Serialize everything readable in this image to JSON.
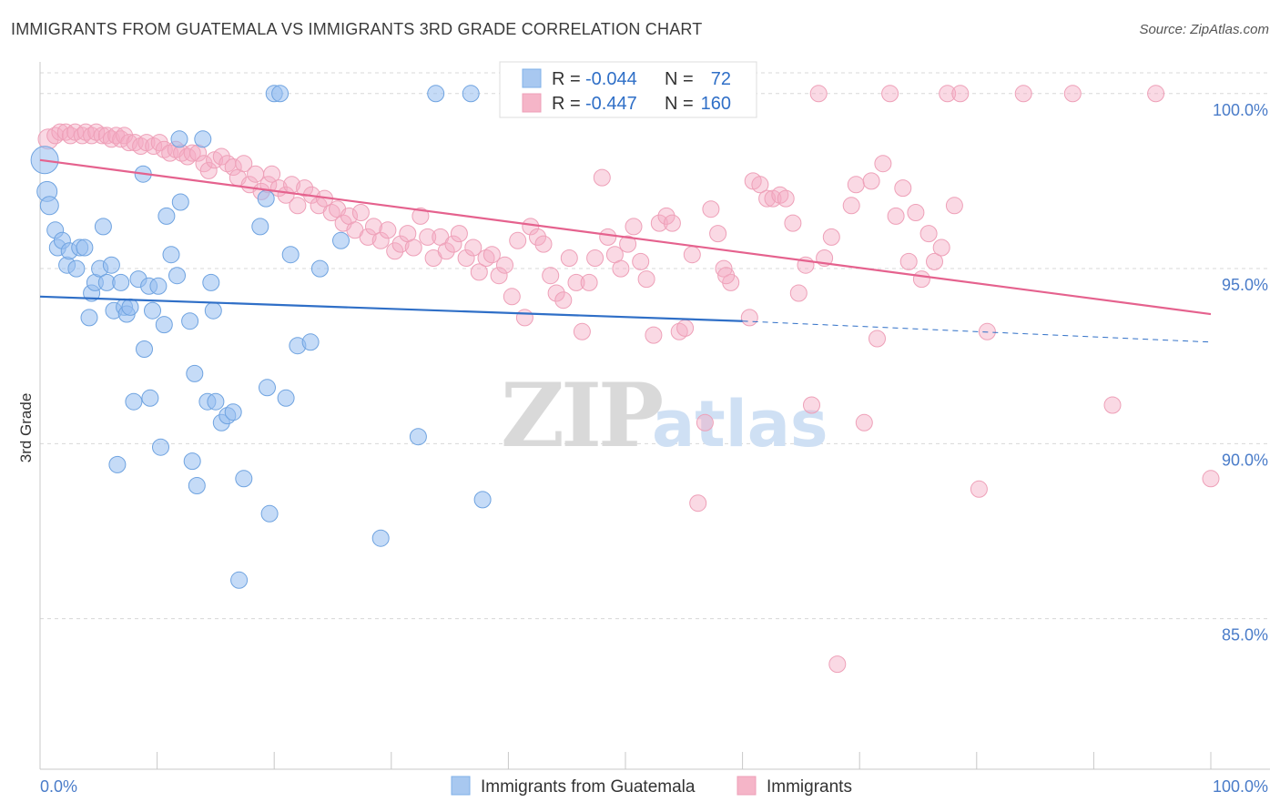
{
  "header": {
    "title": "IMMIGRANTS FROM GUATEMALA VS IMMIGRANTS 3RD GRADE CORRELATION CHART",
    "source": "Source: ZipAtlas.com"
  },
  "watermark": {
    "zip": "ZIP",
    "atlas": "atlas"
  },
  "legend": {
    "rows": [
      {
        "r_label": "R =",
        "r_value": "-0.044",
        "n_label": "N =",
        "n_value": "72",
        "color": "#a8c8f0"
      },
      {
        "r_label": "R =",
        "r_value": "-0.447",
        "n_label": "N =",
        "n_value": "160",
        "color": "#f5b5c8"
      }
    ]
  },
  "chart_data": {
    "type": "scatter",
    "title": "IMMIGRANTS FROM GUATEMALA VS IMMIGRANTS 3RD GRADE CORRELATION CHART",
    "xlabel": "",
    "ylabel": "3rd Grade",
    "x_tick_labels": [
      "0.0%",
      "100.0%"
    ],
    "y_tick_labels": [
      "100.0%",
      "95.0%",
      "90.0%",
      "85.0%"
    ],
    "y_ticks": [
      100,
      95,
      90,
      85
    ],
    "xlim": [
      0,
      100
    ],
    "ylim": [
      80.7,
      100.8
    ],
    "grid": true,
    "legend_position": "top-center",
    "colors": {
      "blue": "#6fa3e0",
      "blue_line": "#2f6fc7",
      "pink": "#f0a0ba",
      "pink_line": "#e5628e",
      "tick": "#4a7cc9"
    },
    "series": [
      {
        "name": "Immigrants from Guatemala",
        "color": "#a8c8f0",
        "trend": {
          "x": [
            0,
            60
          ],
          "y": [
            94.2,
            93.5
          ],
          "dashed_extension": {
            "x": [
              60,
              100
            ],
            "y": [
              93.5,
              92.9
            ]
          }
        },
        "points": [
          [
            0.4,
            98.1,
            14
          ],
          [
            0.6,
            97.2,
            10
          ],
          [
            0.8,
            96.8,
            9
          ],
          [
            1.3,
            96.1,
            8
          ],
          [
            1.5,
            95.6,
            8
          ],
          [
            1.9,
            95.8,
            8
          ],
          [
            2.3,
            95.1,
            8
          ],
          [
            2.5,
            95.5,
            8
          ],
          [
            3.1,
            95.0,
            8
          ],
          [
            3.4,
            95.6,
            8
          ],
          [
            3.8,
            95.6,
            8
          ],
          [
            4.2,
            93.6,
            8
          ],
          [
            4.4,
            94.3,
            8
          ],
          [
            4.7,
            94.6,
            8
          ],
          [
            5.1,
            95.0,
            8
          ],
          [
            5.4,
            96.2,
            8
          ],
          [
            5.7,
            94.6,
            8
          ],
          [
            6.1,
            95.1,
            8
          ],
          [
            6.3,
            93.8,
            8
          ],
          [
            6.6,
            89.4,
            8
          ],
          [
            6.9,
            94.6,
            8
          ],
          [
            7.2,
            93.9,
            8
          ],
          [
            7.4,
            93.7,
            8
          ],
          [
            7.7,
            93.9,
            8
          ],
          [
            8.0,
            91.2,
            8
          ],
          [
            8.4,
            94.7,
            8
          ],
          [
            8.8,
            97.7,
            8
          ],
          [
            8.9,
            92.7,
            8
          ],
          [
            9.3,
            94.5,
            8
          ],
          [
            9.4,
            91.3,
            8
          ],
          [
            9.6,
            93.8,
            8
          ],
          [
            10.1,
            94.5,
            8
          ],
          [
            10.3,
            89.9,
            8
          ],
          [
            10.6,
            93.4,
            8
          ],
          [
            10.8,
            96.5,
            8
          ],
          [
            11.2,
            95.4,
            8
          ],
          [
            11.7,
            94.8,
            8
          ],
          [
            12.0,
            96.9,
            8
          ],
          [
            12.8,
            93.5,
            8
          ],
          [
            13.0,
            89.5,
            8
          ],
          [
            13.2,
            92.0,
            8
          ],
          [
            13.4,
            88.8,
            8
          ],
          [
            13.9,
            98.7,
            8
          ],
          [
            14.3,
            91.2,
            8
          ],
          [
            14.8,
            93.8,
            8
          ],
          [
            14.6,
            94.6,
            8
          ],
          [
            15.0,
            91.2,
            8
          ],
          [
            15.5,
            90.6,
            8
          ],
          [
            16.0,
            90.8,
            8
          ],
          [
            16.5,
            90.9,
            8
          ],
          [
            17.0,
            86.1,
            8
          ],
          [
            17.4,
            89.0,
            8
          ],
          [
            18.8,
            96.2,
            8
          ],
          [
            19.3,
            97.0,
            8
          ],
          [
            19.4,
            91.6,
            8
          ],
          [
            19.6,
            88.0,
            8
          ],
          [
            20.0,
            100.0,
            8
          ],
          [
            20.5,
            100.0,
            8
          ],
          [
            21.0,
            91.3,
            8
          ],
          [
            21.4,
            95.4,
            8
          ],
          [
            22.0,
            92.8,
            8
          ],
          [
            23.1,
            92.9,
            8
          ],
          [
            23.9,
            95.0,
            8
          ],
          [
            25.7,
            95.8,
            8
          ],
          [
            29.1,
            87.3,
            8
          ],
          [
            32.3,
            90.2,
            8
          ],
          [
            33.8,
            100.0,
            8
          ],
          [
            36.8,
            100.0,
            8
          ],
          [
            37.8,
            88.4,
            8
          ],
          [
            60.2,
            100.0,
            8
          ],
          [
            60.5,
            100.0,
            8
          ],
          [
            11.9,
            98.7,
            8
          ]
        ]
      },
      {
        "name": "Immigrants",
        "color": "#f5b5c8",
        "trend": {
          "x": [
            0,
            100
          ],
          "y": [
            98.1,
            93.7
          ]
        },
        "points": [
          [
            0.7,
            98.7,
            10
          ],
          [
            1.3,
            98.8,
            8
          ],
          [
            1.7,
            98.9,
            8
          ],
          [
            2.2,
            98.9,
            8
          ],
          [
            2.6,
            98.8,
            8
          ],
          [
            3.0,
            98.9,
            8
          ],
          [
            3.6,
            98.8,
            8
          ],
          [
            3.9,
            98.9,
            8
          ],
          [
            4.4,
            98.8,
            8
          ],
          [
            4.8,
            98.9,
            8
          ],
          [
            5.3,
            98.8,
            8
          ],
          [
            5.7,
            98.8,
            8
          ],
          [
            6.1,
            98.7,
            8
          ],
          [
            6.5,
            98.8,
            8
          ],
          [
            6.9,
            98.7,
            8
          ],
          [
            7.2,
            98.8,
            8
          ],
          [
            7.6,
            98.6,
            8
          ],
          [
            8.1,
            98.6,
            8
          ],
          [
            8.6,
            98.5,
            8
          ],
          [
            9.1,
            98.6,
            8
          ],
          [
            9.7,
            98.5,
            8
          ],
          [
            10.2,
            98.6,
            8
          ],
          [
            10.6,
            98.4,
            8
          ],
          [
            11.1,
            98.3,
            8
          ],
          [
            11.6,
            98.4,
            8
          ],
          [
            12.1,
            98.3,
            8
          ],
          [
            12.6,
            98.2,
            8
          ],
          [
            13.0,
            98.3,
            8
          ],
          [
            13.5,
            98.3,
            8
          ],
          [
            14.0,
            98.0,
            8
          ],
          [
            14.4,
            97.8,
            8
          ],
          [
            14.9,
            98.1,
            8
          ],
          [
            15.5,
            98.2,
            8
          ],
          [
            16.0,
            98.0,
            8
          ],
          [
            16.5,
            97.9,
            8
          ],
          [
            16.9,
            97.6,
            8
          ],
          [
            17.4,
            98.0,
            8
          ],
          [
            17.9,
            97.4,
            8
          ],
          [
            18.4,
            97.7,
            8
          ],
          [
            18.9,
            97.2,
            8
          ],
          [
            19.5,
            97.4,
            8
          ],
          [
            19.8,
            97.7,
            8
          ],
          [
            20.4,
            97.3,
            8
          ],
          [
            21.0,
            97.1,
            8
          ],
          [
            21.5,
            97.4,
            8
          ],
          [
            22.0,
            96.8,
            8
          ],
          [
            22.6,
            97.3,
            8
          ],
          [
            23.2,
            97.1,
            8
          ],
          [
            23.8,
            96.8,
            8
          ],
          [
            24.3,
            97.0,
            8
          ],
          [
            24.9,
            96.6,
            8
          ],
          [
            25.4,
            96.7,
            8
          ],
          [
            25.9,
            96.3,
            8
          ],
          [
            26.4,
            96.5,
            8
          ],
          [
            26.9,
            96.1,
            8
          ],
          [
            27.4,
            96.6,
            8
          ],
          [
            28.0,
            95.9,
            8
          ],
          [
            28.5,
            96.2,
            8
          ],
          [
            29.1,
            95.8,
            8
          ],
          [
            29.7,
            96.1,
            8
          ],
          [
            30.3,
            95.5,
            8
          ],
          [
            30.8,
            95.7,
            8
          ],
          [
            31.4,
            96.0,
            8
          ],
          [
            31.9,
            95.6,
            8
          ],
          [
            32.5,
            96.5,
            8
          ],
          [
            33.1,
            95.9,
            8
          ],
          [
            33.6,
            95.3,
            8
          ],
          [
            34.2,
            95.9,
            8
          ],
          [
            34.7,
            95.5,
            8
          ],
          [
            35.3,
            95.7,
            8
          ],
          [
            35.8,
            96.0,
            8
          ],
          [
            36.4,
            95.3,
            8
          ],
          [
            37.0,
            95.6,
            8
          ],
          [
            37.5,
            94.9,
            8
          ],
          [
            38.1,
            95.3,
            8
          ],
          [
            38.6,
            95.4,
            8
          ],
          [
            39.2,
            94.8,
            8
          ],
          [
            39.7,
            95.1,
            8
          ],
          [
            40.3,
            94.2,
            8
          ],
          [
            40.8,
            95.8,
            8
          ],
          [
            41.4,
            93.6,
            8
          ],
          [
            41.9,
            96.2,
            8
          ],
          [
            42.5,
            95.9,
            8
          ],
          [
            43.0,
            95.7,
            8
          ],
          [
            43.6,
            94.8,
            8
          ],
          [
            44.1,
            94.3,
            8
          ],
          [
            44.7,
            94.1,
            8
          ],
          [
            45.2,
            95.3,
            8
          ],
          [
            45.8,
            94.6,
            8
          ],
          [
            46.3,
            93.2,
            8
          ],
          [
            46.9,
            94.6,
            8
          ],
          [
            47.4,
            95.3,
            8
          ],
          [
            48.0,
            97.6,
            8
          ],
          [
            48.5,
            95.9,
            8
          ],
          [
            49.1,
            95.4,
            8
          ],
          [
            49.6,
            95.0,
            8
          ],
          [
            50.2,
            95.7,
            8
          ],
          [
            50.7,
            96.2,
            8
          ],
          [
            51.3,
            95.2,
            8
          ],
          [
            51.8,
            94.7,
            8
          ],
          [
            52.4,
            93.1,
            8
          ],
          [
            52.9,
            96.3,
            8
          ],
          [
            53.5,
            96.5,
            8
          ],
          [
            54.0,
            96.3,
            8
          ],
          [
            54.6,
            93.2,
            8
          ],
          [
            55.1,
            93.3,
            8
          ],
          [
            55.7,
            95.4,
            8
          ],
          [
            56.2,
            88.3,
            8
          ],
          [
            56.8,
            90.6,
            8
          ],
          [
            57.3,
            96.7,
            8
          ],
          [
            57.9,
            96.0,
            8
          ],
          [
            58.4,
            95.0,
            8
          ],
          [
            59.0,
            94.6,
            8
          ],
          [
            58.6,
            94.8,
            8
          ],
          [
            60.6,
            93.6,
            8
          ],
          [
            60.9,
            97.5,
            8
          ],
          [
            61.5,
            97.4,
            8
          ],
          [
            62.1,
            97.0,
            8
          ],
          [
            62.6,
            97.0,
            8
          ],
          [
            63.2,
            97.1,
            8
          ],
          [
            63.7,
            97.0,
            8
          ],
          [
            64.3,
            96.3,
            8
          ],
          [
            64.8,
            94.3,
            8
          ],
          [
            65.4,
            95.1,
            8
          ],
          [
            65.9,
            91.1,
            8
          ],
          [
            66.5,
            100.0,
            8
          ],
          [
            67.0,
            95.3,
            8
          ],
          [
            67.6,
            95.9,
            8
          ],
          [
            68.1,
            83.7,
            8
          ],
          [
            69.3,
            96.8,
            8
          ],
          [
            69.7,
            97.4,
            8
          ],
          [
            70.4,
            90.6,
            8
          ],
          [
            71.0,
            97.5,
            8
          ],
          [
            71.5,
            93.0,
            8
          ],
          [
            72.0,
            98.0,
            8
          ],
          [
            72.6,
            100.0,
            8
          ],
          [
            73.1,
            96.5,
            8
          ],
          [
            73.7,
            97.3,
            8
          ],
          [
            74.2,
            95.2,
            8
          ],
          [
            74.8,
            96.6,
            8
          ],
          [
            75.3,
            94.7,
            8
          ],
          [
            75.9,
            96.0,
            8
          ],
          [
            76.4,
            95.2,
            8
          ],
          [
            77.0,
            95.6,
            8
          ],
          [
            77.5,
            100.0,
            8
          ],
          [
            78.1,
            96.8,
            8
          ],
          [
            78.6,
            100.0,
            8
          ],
          [
            80.2,
            88.7,
            8
          ],
          [
            80.9,
            93.2,
            8
          ],
          [
            84.0,
            100.0,
            8
          ],
          [
            88.2,
            100.0,
            8
          ],
          [
            91.6,
            91.1,
            8
          ],
          [
            95.3,
            100.0,
            8
          ],
          [
            100.0,
            89.0,
            8
          ]
        ]
      }
    ]
  },
  "bottom_legend": {
    "items": [
      {
        "label": "Immigrants from Guatemala",
        "color": "#a8c8f0"
      },
      {
        "label": "Immigrants",
        "color": "#f5b5c8"
      }
    ]
  }
}
